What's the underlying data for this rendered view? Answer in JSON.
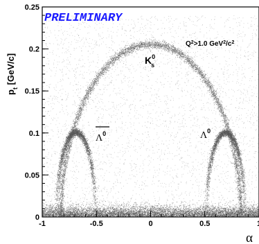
{
  "chart_data": {
    "type": "scatter",
    "title": "",
    "xlabel": "α",
    "ylabel": "p",
    "ylabel_sub": "t",
    "ylabel_unit": " [GeV/c]",
    "xlim": [
      -1,
      1
    ],
    "ylim": [
      0,
      0.25
    ],
    "x_ticks": [
      -1,
      -0.5,
      0,
      0.5,
      1
    ],
    "x_tick_labels": [
      "-1",
      "-0.5",
      "0",
      "0.5",
      "1"
    ],
    "y_ticks": [
      0,
      0.05,
      0.1,
      0.15,
      0.2,
      0.25
    ],
    "y_tick_labels": [
      "0",
      "0.05",
      "0.1",
      "0.15",
      "0.2",
      "0.25"
    ],
    "grid": false,
    "colors": {
      "points": "#555555",
      "prelim": "#1a1aff",
      "axes": "#000000"
    },
    "preliminary_label": "PRELIMINARY",
    "cut_label": {
      "q": "Q",
      "q_sup": "2",
      "middle": ">1.0 GeV",
      "gev_sup": "2",
      "slash_c": "/c",
      "c_sup": "2"
    },
    "particles": [
      {
        "key": "ks",
        "base": "K",
        "sup": "0",
        "sub": "s",
        "overline": false
      },
      {
        "key": "lambda",
        "base": "Λ",
        "sup": "0",
        "sub": "",
        "overline": false
      },
      {
        "key": "antilambda",
        "base": "Λ",
        "sup": "0",
        "sub": "",
        "overline": true
      }
    ],
    "bands": [
      {
        "name": "K0s",
        "center_alpha": 0.0,
        "peak_pt": 0.206,
        "half_width_alpha": 0.83
      },
      {
        "name": "Lambda0",
        "center_alpha": 0.69,
        "peak_pt": 0.101,
        "half_width_alpha": 0.18
      },
      {
        "name": "anti-Lambda0",
        "center_alpha": -0.69,
        "peak_pt": 0.101,
        "half_width_alpha": 0.18
      }
    ],
    "background_band_pt": [
      0,
      0.012
    ]
  }
}
